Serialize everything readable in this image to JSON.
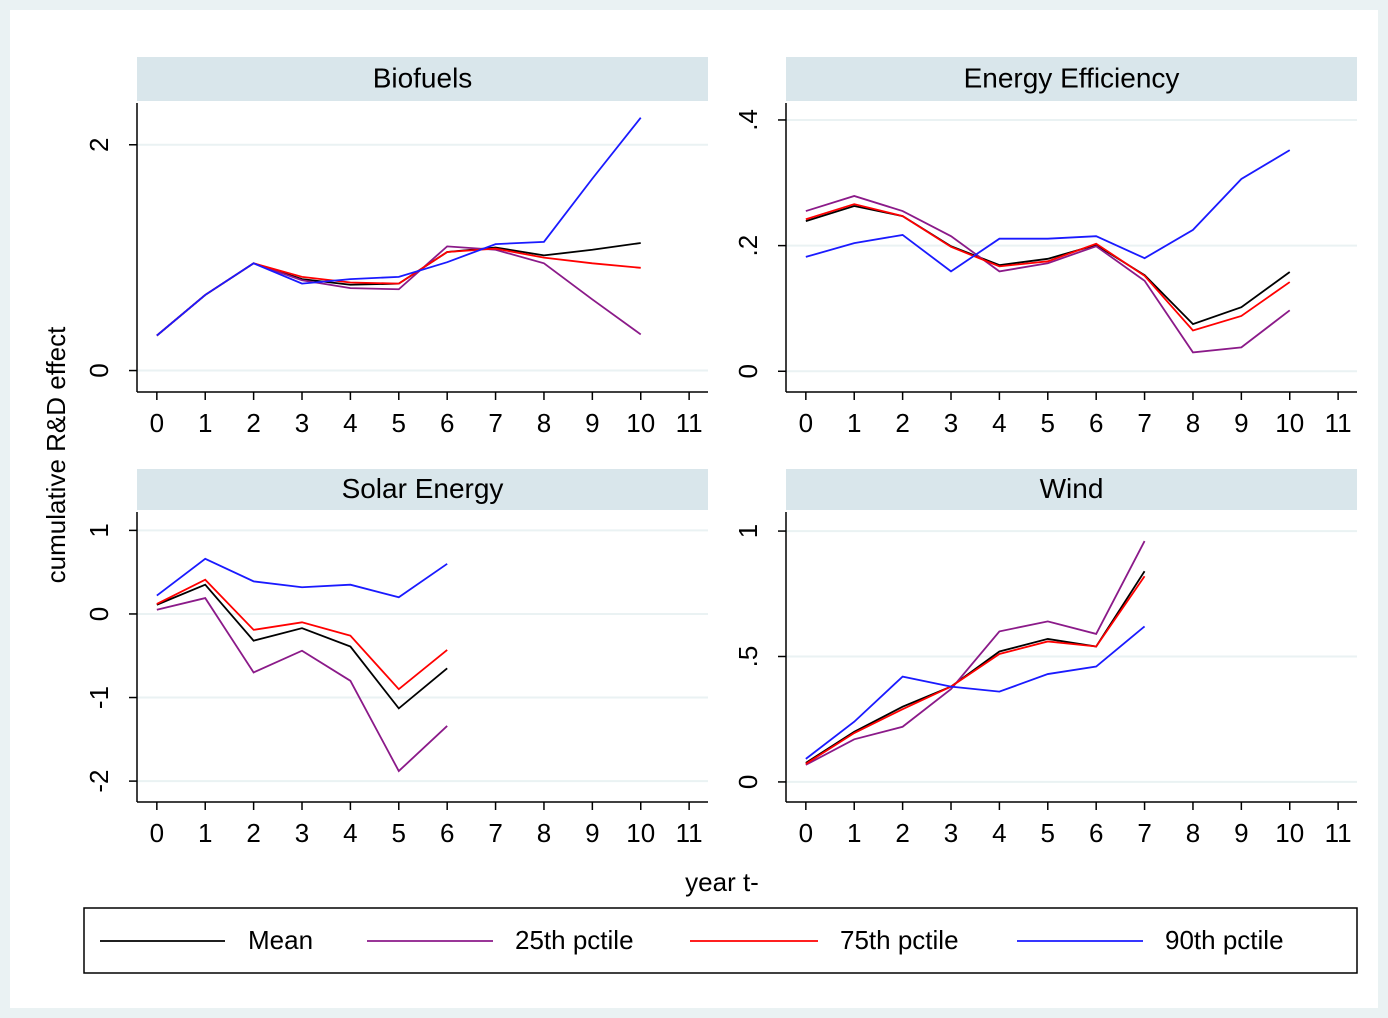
{
  "y_label": "cumulative R&D effect",
  "x_label": "year t-",
  "chart_data": [
    {
      "type": "line",
      "title": "Biofuels",
      "grid": true,
      "x": [
        0,
        1,
        2,
        3,
        4,
        5,
        6,
        7,
        8,
        9,
        10
      ],
      "xlim": [
        -0.41,
        11.39
      ],
      "xticks": [
        0,
        1,
        2,
        3,
        4,
        5,
        6,
        7,
        8,
        9,
        10,
        11
      ],
      "ylim": [
        -0.19,
        2.37
      ],
      "yticks": [
        0,
        2
      ],
      "series": [
        {
          "name": "Mean",
          "color": "#000000",
          "values": [
            0.31,
            0.67,
            0.95,
            0.81,
            0.76,
            0.77,
            1.05,
            1.09,
            1.02,
            1.07,
            1.13
          ]
        },
        {
          "name": "25th pctile",
          "color": "#8b1a89",
          "values": [
            0.31,
            0.67,
            0.95,
            0.8,
            0.73,
            0.72,
            1.1,
            1.07,
            0.95,
            0.63,
            0.32
          ]
        },
        {
          "name": "75th pctile",
          "color": "#ff0000",
          "values": [
            0.31,
            0.67,
            0.95,
            0.83,
            0.78,
            0.77,
            1.05,
            1.08,
            1.0,
            0.95,
            0.91
          ]
        },
        {
          "name": "90th pctile",
          "color": "#1a1aff",
          "values": [
            0.31,
            0.67,
            0.95,
            0.77,
            0.81,
            0.83,
            0.96,
            1.12,
            1.14,
            1.7,
            2.24
          ]
        }
      ]
    },
    {
      "type": "line",
      "title": "Energy Efficiency",
      "grid": true,
      "x": [
        0,
        1,
        2,
        3,
        4,
        5,
        6,
        7,
        8,
        9,
        10
      ],
      "xlim": [
        -0.41,
        11.39
      ],
      "xticks": [
        0,
        1,
        2,
        3,
        4,
        5,
        6,
        7,
        8,
        9,
        10,
        11
      ],
      "ylim": [
        -0.033,
        0.427
      ],
      "yticks": [
        0,
        {
          "value": 0.2,
          "label": ".2"
        },
        {
          "value": 0.4,
          "label": ".4"
        }
      ],
      "series": [
        {
          "name": "Mean",
          "color": "#000000",
          "values": [
            0.239,
            0.263,
            0.247,
            0.199,
            0.169,
            0.179,
            0.201,
            0.153,
            0.075,
            0.102,
            0.158
          ]
        },
        {
          "name": "25th pctile",
          "color": "#8b1a89",
          "values": [
            0.255,
            0.279,
            0.255,
            0.215,
            0.159,
            0.172,
            0.199,
            0.144,
            0.03,
            0.038,
            0.097
          ]
        },
        {
          "name": "75th pctile",
          "color": "#ff0000",
          "values": [
            0.242,
            0.266,
            0.247,
            0.198,
            0.167,
            0.175,
            0.203,
            0.152,
            0.065,
            0.088,
            0.142
          ]
        },
        {
          "name": "90th pctile",
          "color": "#1a1aff",
          "values": [
            0.182,
            0.204,
            0.217,
            0.159,
            0.211,
            0.211,
            0.215,
            0.18,
            0.225,
            0.306,
            0.352
          ]
        }
      ]
    },
    {
      "type": "line",
      "title": "Solar Energy",
      "grid": true,
      "x": [
        0,
        1,
        2,
        3,
        4,
        5,
        6
      ],
      "xlim": [
        -0.41,
        11.39
      ],
      "xticks": [
        0,
        1,
        2,
        3,
        4,
        5,
        6,
        7,
        8,
        9,
        10,
        11
      ],
      "ylim": [
        -2.25,
        1.22
      ],
      "yticks": [
        -2,
        -1,
        0,
        1
      ],
      "series": [
        {
          "name": "Mean",
          "color": "#000000",
          "values": [
            0.11,
            0.35,
            -0.32,
            -0.17,
            -0.39,
            -1.13,
            -0.65
          ]
        },
        {
          "name": "25th pctile",
          "color": "#8b1a89",
          "values": [
            0.05,
            0.19,
            -0.7,
            -0.44,
            -0.8,
            -1.88,
            -1.34
          ]
        },
        {
          "name": "75th pctile",
          "color": "#ff0000",
          "values": [
            0.12,
            0.41,
            -0.19,
            -0.1,
            -0.26,
            -0.9,
            -0.43
          ]
        },
        {
          "name": "90th pctile",
          "color": "#1a1aff",
          "values": [
            0.22,
            0.66,
            0.39,
            0.32,
            0.35,
            0.2,
            0.6
          ]
        }
      ]
    },
    {
      "type": "line",
      "title": "Wind",
      "grid": true,
      "x": [
        0,
        1,
        2,
        3,
        4,
        5,
        6,
        7
      ],
      "xlim": [
        -0.41,
        11.39
      ],
      "xticks": [
        0,
        1,
        2,
        3,
        4,
        5,
        6,
        7,
        8,
        9,
        10,
        11
      ],
      "ylim": [
        -0.08,
        1.076
      ],
      "yticks": [
        0,
        {
          "value": 0.5,
          "label": ".5"
        },
        1
      ],
      "series": [
        {
          "name": "Mean",
          "color": "#000000",
          "values": [
            0.076,
            0.2,
            0.3,
            0.38,
            0.52,
            0.57,
            0.54,
            0.84
          ]
        },
        {
          "name": "25th pctile",
          "color": "#8b1a89",
          "values": [
            0.068,
            0.17,
            0.22,
            0.37,
            0.6,
            0.64,
            0.59,
            0.96
          ]
        },
        {
          "name": "75th pctile",
          "color": "#ff0000",
          "values": [
            0.072,
            0.195,
            0.29,
            0.38,
            0.51,
            0.56,
            0.54,
            0.82
          ]
        },
        {
          "name": "90th pctile",
          "color": "#1a1aff",
          "values": [
            0.092,
            0.24,
            0.42,
            0.38,
            0.36,
            0.43,
            0.46,
            0.62
          ]
        }
      ]
    }
  ]
}
